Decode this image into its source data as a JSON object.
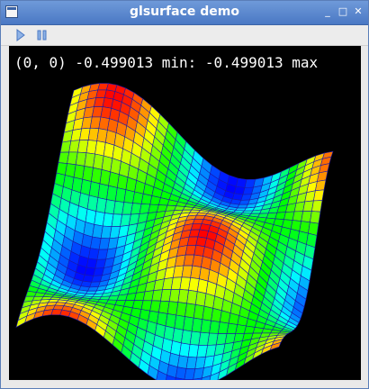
{
  "window": {
    "title": "glsurface demo",
    "controls": {
      "minimize": "_",
      "maximize": "□",
      "close": "✕"
    }
  },
  "toolbar": {
    "play_icon": "play-icon",
    "pause_icon": "pause-icon"
  },
  "readout": {
    "text": "(0, 0) -0.499013 min: -0.499013 max"
  },
  "colors": {
    "titlebar": "#4a78c4",
    "canvas_bg": "#000000",
    "mesh_line": "#1a1aa8",
    "toolbar_icon": "#4a78c4"
  }
}
